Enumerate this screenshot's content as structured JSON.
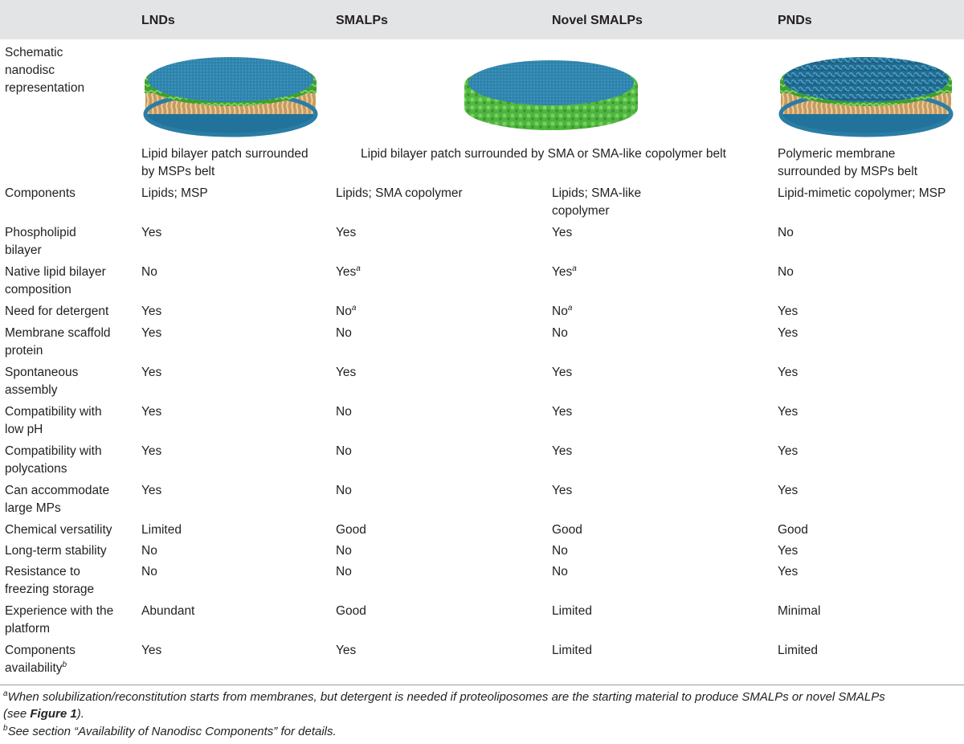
{
  "columns": {
    "lnds": "LNDs",
    "smalps": "SMALPs",
    "novel_smalps": "Novel SMALPs",
    "pnds": "PNDs"
  },
  "schematic": {
    "label_line1": "Schematic",
    "label_line2": "nanodisc",
    "label_line3": "representation",
    "caption_lnds_1": "Lipid bilayer patch surrounded",
    "caption_lnds_2": "by MSPs belt",
    "caption_smalps": "Lipid bilayer patch surrounded by SMA or SMA-like copolymer belt",
    "caption_pnds_1": "Polymeric membrane",
    "caption_pnds_2": "surrounded by MSPs belt",
    "colors": {
      "lipid_top": "#2e7fa6",
      "msp_green": "#4aa83c",
      "lipid_tail": "#d9b07a",
      "sma_green": "#5cc24a",
      "polymer_top": "#2a6f96"
    }
  },
  "rows": {
    "components": {
      "l1": "Components",
      "lnds": "Lipids; MSP",
      "smalps": "Lipids; SMA copolymer",
      "novel_1": "Lipids; SMA-like",
      "novel_2": "copolymer",
      "pnds": "Lipid-mimetic copolymer; MSP"
    },
    "phospholipid": {
      "l1": "Phospholipid",
      "l2": "bilayer",
      "lnds": "Yes",
      "smalps": "Yes",
      "novel": "Yes",
      "pnds": "No"
    },
    "native": {
      "l1": "Native lipid bilayer",
      "l2": "composition",
      "lnds": "No",
      "smalps": "Yes",
      "smalps_sup": "a",
      "novel": "Yes",
      "novel_sup": "a",
      "pnds": "No"
    },
    "detergent": {
      "l1": "Need for detergent",
      "lnds": "Yes",
      "smalps": "No",
      "smalps_sup": "a",
      "novel": "No",
      "novel_sup": "a",
      "pnds": "Yes"
    },
    "scaffold": {
      "l1": "Membrane scaffold",
      "l2": "protein",
      "lnds": "Yes",
      "smalps": "No",
      "novel": "No",
      "pnds": "Yes"
    },
    "spontaneous": {
      "l1": "Spontaneous",
      "l2": "assembly",
      "lnds": "Yes",
      "smalps": "Yes",
      "novel": "Yes",
      "pnds": "Yes"
    },
    "low_ph": {
      "l1": "Compatibility with",
      "l2": "low pH",
      "lnds": "Yes",
      "smalps": "No",
      "novel": "Yes",
      "pnds": "Yes"
    },
    "polycations": {
      "l1": "Compatibility with",
      "l2": "polycations",
      "lnds": "Yes",
      "smalps": "No",
      "novel": "Yes",
      "pnds": "Yes"
    },
    "large_mps": {
      "l1": "Can accommodate",
      "l2": "large MPs",
      "lnds": "Yes",
      "smalps": "No",
      "novel": "Yes",
      "pnds": "Yes"
    },
    "versatility": {
      "l1": "Chemical versatility",
      "lnds": "Limited",
      "smalps": "Good",
      "novel": "Good",
      "pnds": "Good"
    },
    "stability": {
      "l1": "Long-term stability",
      "lnds": "No",
      "smalps": "No",
      "novel": "No",
      "pnds": "Yes"
    },
    "freezing": {
      "l1": "Resistance to",
      "l2": "freezing storage",
      "lnds": "No",
      "smalps": "No",
      "novel": "No",
      "pnds": "Yes"
    },
    "experience": {
      "l1": "Experience with the",
      "l2": "platform",
      "lnds": "Abundant",
      "smalps": "Good",
      "novel": "Limited",
      "pnds": "Minimal"
    },
    "availability": {
      "l1": "Components",
      "l2": "availability",
      "l2_sup": "b",
      "lnds": "Yes",
      "smalps": "Yes",
      "novel": "Limited",
      "pnds": "Limited"
    }
  },
  "footnotes": {
    "a_mark": "a",
    "a_text_1": "When solubilization/reconstitution starts from membranes, but detergent is needed if proteoliposomes are the starting material to produce SMALPs or novel SMALPs",
    "a_text_2_pre": "(see ",
    "a_text_2_bold": "Figure 1",
    "a_text_2_post": ").",
    "b_mark": "b",
    "b_text": "See section “Availability of Nanodisc Components” for details."
  }
}
